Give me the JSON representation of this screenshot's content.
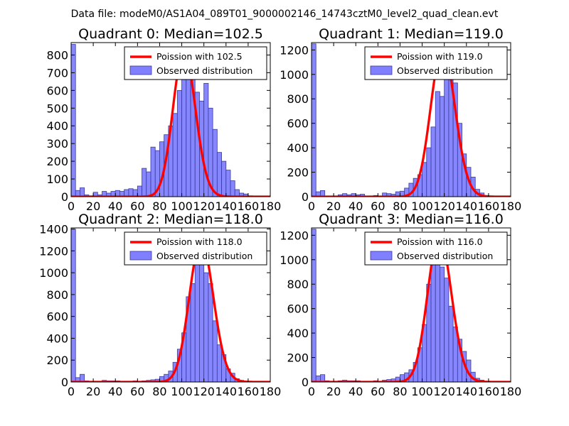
{
  "suptitle": "Data file: modeM0/AS1A04_089T01_9000002146_14743cztM0_level2_quad_clean.evt",
  "colors": {
    "bar_fill": "#7f7fff",
    "bar_edge": "#3a3a9a",
    "curve": "#ff0000",
    "axis": "#000000"
  },
  "chart_data": [
    {
      "type": "bar",
      "title": "Quadrant 0: Median=102.5",
      "median": 102.5,
      "xlim": [
        0,
        180
      ],
      "ylim": [
        0,
        870
      ],
      "xticks": [
        0,
        20,
        40,
        60,
        80,
        100,
        120,
        140,
        160,
        180
      ],
      "yticks": [
        0,
        100,
        200,
        300,
        400,
        500,
        600,
        700,
        800
      ],
      "bin_width": 4,
      "bins_start": [
        0,
        4,
        8,
        12,
        16,
        20,
        24,
        28,
        32,
        36,
        40,
        44,
        48,
        52,
        56,
        60,
        64,
        68,
        72,
        76,
        80,
        84,
        88,
        92,
        96,
        100,
        104,
        108,
        112,
        116,
        120,
        124,
        128,
        132,
        136,
        140,
        144,
        148,
        152,
        156,
        160,
        164
      ],
      "values": [
        860,
        35,
        50,
        10,
        5,
        25,
        10,
        30,
        20,
        30,
        35,
        30,
        40,
        45,
        40,
        60,
        160,
        140,
        280,
        260,
        310,
        350,
        400,
        470,
        600,
        750,
        800,
        700,
        590,
        540,
        640,
        500,
        380,
        250,
        200,
        150,
        90,
        40,
        20,
        15,
        5,
        2
      ],
      "legend": [
        "Poission with 102.5",
        "Observed distribution"
      ]
    },
    {
      "type": "bar",
      "title": "Quadrant 1: Median=119.0",
      "median": 119.0,
      "xlim": [
        0,
        180
      ],
      "ylim": [
        0,
        1260
      ],
      "xticks": [
        0,
        20,
        40,
        60,
        80,
        100,
        120,
        140,
        160,
        180
      ],
      "yticks": [
        0,
        200,
        400,
        600,
        800,
        1000,
        1200
      ],
      "bin_width": 4,
      "bins_start": [
        0,
        4,
        8,
        12,
        16,
        20,
        24,
        28,
        32,
        36,
        40,
        44,
        48,
        52,
        56,
        60,
        64,
        68,
        72,
        76,
        80,
        84,
        88,
        92,
        96,
        100,
        104,
        108,
        112,
        116,
        120,
        124,
        128,
        132,
        136,
        140,
        144,
        148,
        152,
        156,
        160
      ],
      "values": [
        1250,
        40,
        50,
        5,
        5,
        5,
        15,
        25,
        15,
        25,
        15,
        20,
        5,
        5,
        10,
        5,
        30,
        25,
        20,
        40,
        45,
        70,
        110,
        150,
        180,
        280,
        400,
        570,
        860,
        820,
        980,
        1180,
        930,
        600,
        350,
        240,
        160,
        60,
        30,
        10,
        5
      ],
      "legend": [
        "Poission with 119.0",
        "Observed distribution"
      ]
    },
    {
      "type": "bar",
      "title": "Quadrant 2: Median=118.0",
      "median": 118.0,
      "xlim": [
        0,
        180
      ],
      "ylim": [
        0,
        1410
      ],
      "xticks": [
        0,
        20,
        40,
        60,
        80,
        100,
        120,
        140,
        160,
        180
      ],
      "yticks": [
        0,
        200,
        400,
        600,
        800,
        1000,
        1200,
        1400
      ],
      "bin_width": 4,
      "bins_start": [
        0,
        4,
        8,
        12,
        16,
        20,
        24,
        28,
        32,
        36,
        40,
        44,
        48,
        52,
        56,
        60,
        64,
        68,
        72,
        76,
        80,
        84,
        88,
        92,
        96,
        100,
        104,
        108,
        112,
        116,
        120,
        124,
        128,
        132,
        136,
        140,
        144,
        148,
        152,
        156,
        160
      ],
      "values": [
        1400,
        40,
        70,
        10,
        5,
        5,
        5,
        15,
        10,
        10,
        10,
        5,
        5,
        5,
        10,
        5,
        10,
        15,
        20,
        25,
        50,
        70,
        100,
        180,
        300,
        450,
        780,
        900,
        1250,
        1100,
        1000,
        900,
        560,
        340,
        250,
        120,
        80,
        30,
        15,
        5,
        2
      ],
      "legend": [
        "Poission with 118.0",
        "Observed distribution"
      ]
    },
    {
      "type": "bar",
      "title": "Quadrant 3: Median=116.0",
      "median": 116.0,
      "xlim": [
        0,
        180
      ],
      "ylim": [
        0,
        1260
      ],
      "xticks": [
        0,
        20,
        40,
        60,
        80,
        100,
        120,
        140,
        160,
        180
      ],
      "yticks": [
        0,
        200,
        400,
        600,
        800,
        1000,
        1200
      ],
      "bin_width": 4,
      "bins_start": [
        0,
        4,
        8,
        12,
        16,
        20,
        24,
        28,
        32,
        36,
        40,
        44,
        48,
        52,
        56,
        60,
        64,
        68,
        72,
        76,
        80,
        84,
        88,
        92,
        96,
        100,
        104,
        108,
        112,
        116,
        120,
        124,
        128,
        132,
        136,
        140,
        144,
        148,
        152,
        156,
        160
      ],
      "values": [
        1250,
        50,
        60,
        10,
        5,
        5,
        10,
        15,
        10,
        10,
        10,
        5,
        5,
        5,
        10,
        5,
        15,
        20,
        25,
        40,
        60,
        75,
        100,
        160,
        280,
        470,
        800,
        1000,
        1160,
        940,
        850,
        620,
        450,
        350,
        250,
        180,
        80,
        30,
        15,
        5,
        2
      ],
      "legend": [
        "Poission with 116.0",
        "Observed distribution"
      ]
    }
  ]
}
